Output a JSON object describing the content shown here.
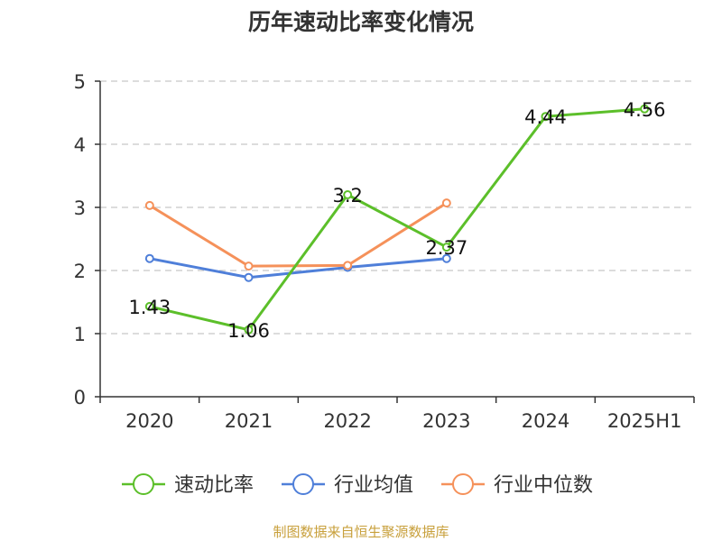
{
  "chart_data": {
    "type": "line",
    "title": "历年速动比率变化情况",
    "categories": [
      "2020",
      "2021",
      "2022",
      "2023",
      "2024",
      "2025H1"
    ],
    "ylim": [
      0,
      5
    ],
    "yticks": [
      "0",
      "1",
      "2",
      "3",
      "4",
      "5"
    ],
    "grid": true,
    "legend_position": "bottom",
    "series": [
      {
        "name": "速动比率",
        "color": "#5cbf2a",
        "values": [
          1.43,
          1.06,
          3.2,
          2.37,
          4.44,
          4.56
        ],
        "labels": [
          "1.43",
          "1.06",
          "3.2",
          "2.37",
          "4.44",
          "4.56"
        ]
      },
      {
        "name": "行业均值",
        "color": "#4f7fd9",
        "values": [
          2.19,
          1.89,
          2.05,
          2.19,
          null,
          null
        ]
      },
      {
        "name": "行业中位数",
        "color": "#f5915a",
        "values": [
          3.03,
          2.07,
          2.08,
          3.07,
          null,
          null
        ]
      }
    ],
    "source": "制图数据来自恒生聚源数据库"
  }
}
